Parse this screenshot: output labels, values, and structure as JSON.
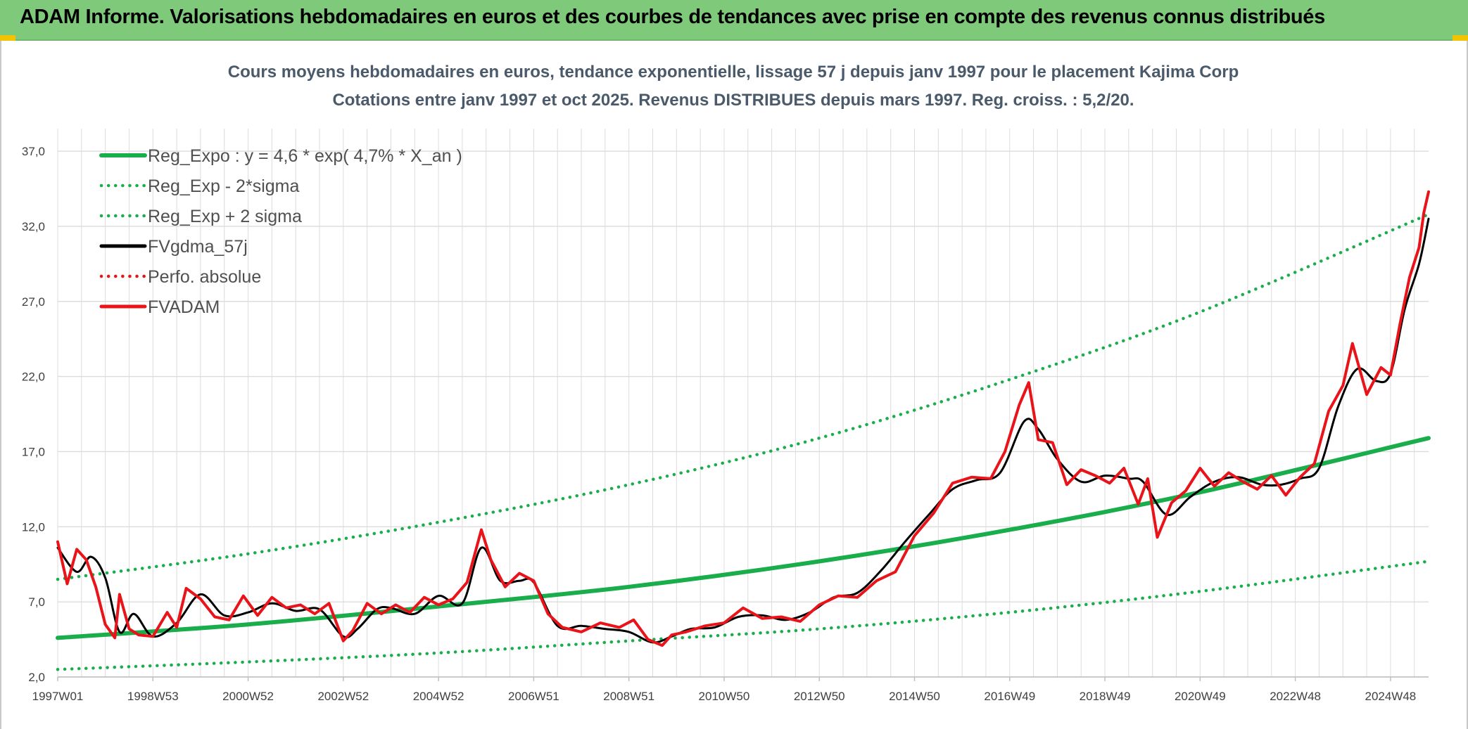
{
  "banner": {
    "title": "ADAM Informe. Valorisations hebdomadaires en euros et des courbes de tendances avec prise en compte des revenus connus distribués"
  },
  "colors": {
    "banner_bg": "#7fc97b",
    "accent_corner": "#f3c300",
    "trend_green": "#1aad4b",
    "series_black": "#000000",
    "series_red": "#e8141a",
    "grid": "#dcdcdc"
  },
  "chart_data": {
    "type": "line",
    "title": "Cours moyens hebdomadaires en euros, tendance exponentielle, lissage 57 j depuis janv 1997 pour le placement Kajima Corp",
    "subtitle": "Cotations entre janv 1997 et oct 2025. Revenus DISTRIBUES depuis mars 1997. Reg. croiss. : 5,2/20.",
    "xlabel": "",
    "ylabel": "",
    "ylim": [
      2.0,
      38.5
    ],
    "grid": true,
    "legend_position": "top-left",
    "y_ticks": [
      "2,0",
      "7,0",
      "12,0",
      "17,0",
      "22,0",
      "27,0",
      "32,0",
      "37,0"
    ],
    "x_ticks": [
      "1997W01",
      "1998W53",
      "2000W52",
      "2002W52",
      "2004W52",
      "2006W51",
      "2008W51",
      "2010W50",
      "2012W50",
      "2014W50",
      "2016W49",
      "2018W49",
      "2020W49",
      "2022W48",
      "2024W48"
    ],
    "x_tick_years": [
      1997.0,
      1999.0,
      2001.0,
      2003.0,
      2005.0,
      2007.0,
      2009.0,
      2011.0,
      2013.0,
      2015.0,
      2017.0,
      2019.0,
      2021.0,
      2023.0,
      2025.0
    ],
    "x_range_years": [
      1997.0,
      2025.8
    ],
    "series": [
      {
        "name": "Reg_Expo : y = 4,6 * exp( 4,7% *  X_an )",
        "style": "solid",
        "color": "#1aad4b",
        "x": [
          1997.0,
          2001.0,
          2005.0,
          2009.0,
          2013.0,
          2017.0,
          2021.0,
          2025.8
        ],
        "y": [
          4.6,
          5.5,
          6.7,
          8.0,
          9.7,
          11.8,
          14.3,
          17.9
        ]
      },
      {
        "name": "Reg_Exp - 2*sigma",
        "style": "dotted",
        "color": "#1aad4b",
        "x": [
          1997.0,
          2001.0,
          2005.0,
          2009.0,
          2013.0,
          2017.0,
          2021.0,
          2025.8
        ],
        "y": [
          2.5,
          3.0,
          3.6,
          4.4,
          5.2,
          6.3,
          7.7,
          9.7
        ]
      },
      {
        "name": "Reg_Exp + 2 sigma",
        "style": "dotted",
        "color": "#1aad4b",
        "x": [
          1997.0,
          2001.0,
          2005.0,
          2009.0,
          2013.0,
          2017.0,
          2021.0,
          2025.8
        ],
        "y": [
          8.5,
          10.2,
          12.3,
          14.8,
          17.9,
          21.8,
          26.3,
          32.8
        ]
      },
      {
        "name": "FVgdma_57j",
        "style": "solid",
        "color": "#000000",
        "x": [
          1997.0,
          1997.4,
          1997.7,
          1998.0,
          1998.3,
          1998.6,
          1999.0,
          1999.5,
          2000.0,
          2000.5,
          2001.0,
          2001.5,
          2002.0,
          2002.5,
          2003.0,
          2003.3,
          2003.7,
          2004.0,
          2004.5,
          2005.0,
          2005.5,
          2005.9,
          2006.3,
          2006.7,
          2007.0,
          2007.5,
          2008.0,
          2008.5,
          2009.0,
          2009.5,
          2009.9,
          2010.3,
          2010.8,
          2011.3,
          2011.8,
          2012.3,
          2012.8,
          2013.3,
          2013.8,
          2014.3,
          2014.8,
          2015.3,
          2015.8,
          2016.3,
          2016.8,
          2017.3,
          2017.6,
          2018.0,
          2018.5,
          2019.0,
          2019.5,
          2019.8,
          2020.3,
          2020.8,
          2021.3,
          2021.8,
          2022.3,
          2022.7,
          2023.1,
          2023.5,
          2023.9,
          2024.3,
          2024.7,
          2025.0,
          2025.3,
          2025.6,
          2025.8
        ],
        "y": [
          10.6,
          9.0,
          10.0,
          8.6,
          5.0,
          6.2,
          4.7,
          5.6,
          7.5,
          6.1,
          6.3,
          6.9,
          6.4,
          6.5,
          4.7,
          5.2,
          6.5,
          6.6,
          6.2,
          7.4,
          6.9,
          10.6,
          8.4,
          8.4,
          8.3,
          5.4,
          5.4,
          5.2,
          5.0,
          4.3,
          4.7,
          5.2,
          5.3,
          6.0,
          6.1,
          5.8,
          6.3,
          7.3,
          7.6,
          9.1,
          11.0,
          12.8,
          14.5,
          15.1,
          15.6,
          19.0,
          18.5,
          16.5,
          15.0,
          15.4,
          15.2,
          15.0,
          12.8,
          14.0,
          15.0,
          15.3,
          14.8,
          14.8,
          15.2,
          15.9,
          20.0,
          22.5,
          21.7,
          22.2,
          26.5,
          29.5,
          32.5
        ]
      },
      {
        "name": "Perfo. absolue",
        "style": "dotted",
        "color": "#e8141a",
        "x": [],
        "y": []
      },
      {
        "name": "FVADAM",
        "style": "solid",
        "color": "#e8141a",
        "x": [
          1997.0,
          1997.2,
          1997.4,
          1997.6,
          1997.8,
          1998.0,
          1998.2,
          1998.3,
          1998.5,
          1998.7,
          1999.0,
          1999.3,
          1999.5,
          1999.7,
          2000.0,
          2000.3,
          2000.6,
          2000.9,
          2001.2,
          2001.5,
          2001.8,
          2002.1,
          2002.4,
          2002.7,
          2003.0,
          2003.2,
          2003.5,
          2003.8,
          2004.1,
          2004.4,
          2004.7,
          2005.0,
          2005.3,
          2005.6,
          2005.9,
          2006.1,
          2006.4,
          2006.7,
          2007.0,
          2007.3,
          2007.6,
          2008.0,
          2008.4,
          2008.8,
          2009.1,
          2009.4,
          2009.7,
          2009.9,
          2010.2,
          2010.6,
          2011.0,
          2011.4,
          2011.8,
          2012.2,
          2012.6,
          2013.0,
          2013.4,
          2013.8,
          2014.2,
          2014.6,
          2015.0,
          2015.4,
          2015.8,
          2016.2,
          2016.6,
          2016.9,
          2017.2,
          2017.4,
          2017.6,
          2017.9,
          2018.2,
          2018.5,
          2018.8,
          2019.1,
          2019.4,
          2019.7,
          2019.9,
          2020.1,
          2020.4,
          2020.7,
          2021.0,
          2021.3,
          2021.6,
          2021.9,
          2022.2,
          2022.5,
          2022.8,
          2023.1,
          2023.4,
          2023.7,
          2024.0,
          2024.2,
          2024.5,
          2024.8,
          2025.0,
          2025.2,
          2025.4,
          2025.6,
          2025.7,
          2025.8
        ],
        "y": [
          11.0,
          8.2,
          10.5,
          9.8,
          8.0,
          5.5,
          4.6,
          7.5,
          5.2,
          4.8,
          4.7,
          6.3,
          5.3,
          7.9,
          7.2,
          6.0,
          5.8,
          7.4,
          6.1,
          7.3,
          6.6,
          6.8,
          6.2,
          6.9,
          4.4,
          5.1,
          6.9,
          6.2,
          6.8,
          6.3,
          7.3,
          6.8,
          7.2,
          8.3,
          11.8,
          9.8,
          8.0,
          8.9,
          8.4,
          6.2,
          5.3,
          5.0,
          5.6,
          5.3,
          5.8,
          4.5,
          4.1,
          4.8,
          5.0,
          5.4,
          5.6,
          6.6,
          5.9,
          6.0,
          5.7,
          6.8,
          7.4,
          7.3,
          8.4,
          9.0,
          11.4,
          12.9,
          14.9,
          15.3,
          15.2,
          17.0,
          20.1,
          21.6,
          17.8,
          17.6,
          14.8,
          15.8,
          15.4,
          14.9,
          15.9,
          13.5,
          15.2,
          11.3,
          13.6,
          14.4,
          15.9,
          14.7,
          15.6,
          15.0,
          14.5,
          15.4,
          14.1,
          15.3,
          16.2,
          19.7,
          21.4,
          24.2,
          20.8,
          22.6,
          22.1,
          25.5,
          28.6,
          30.6,
          32.9,
          34.3
        ]
      }
    ]
  }
}
